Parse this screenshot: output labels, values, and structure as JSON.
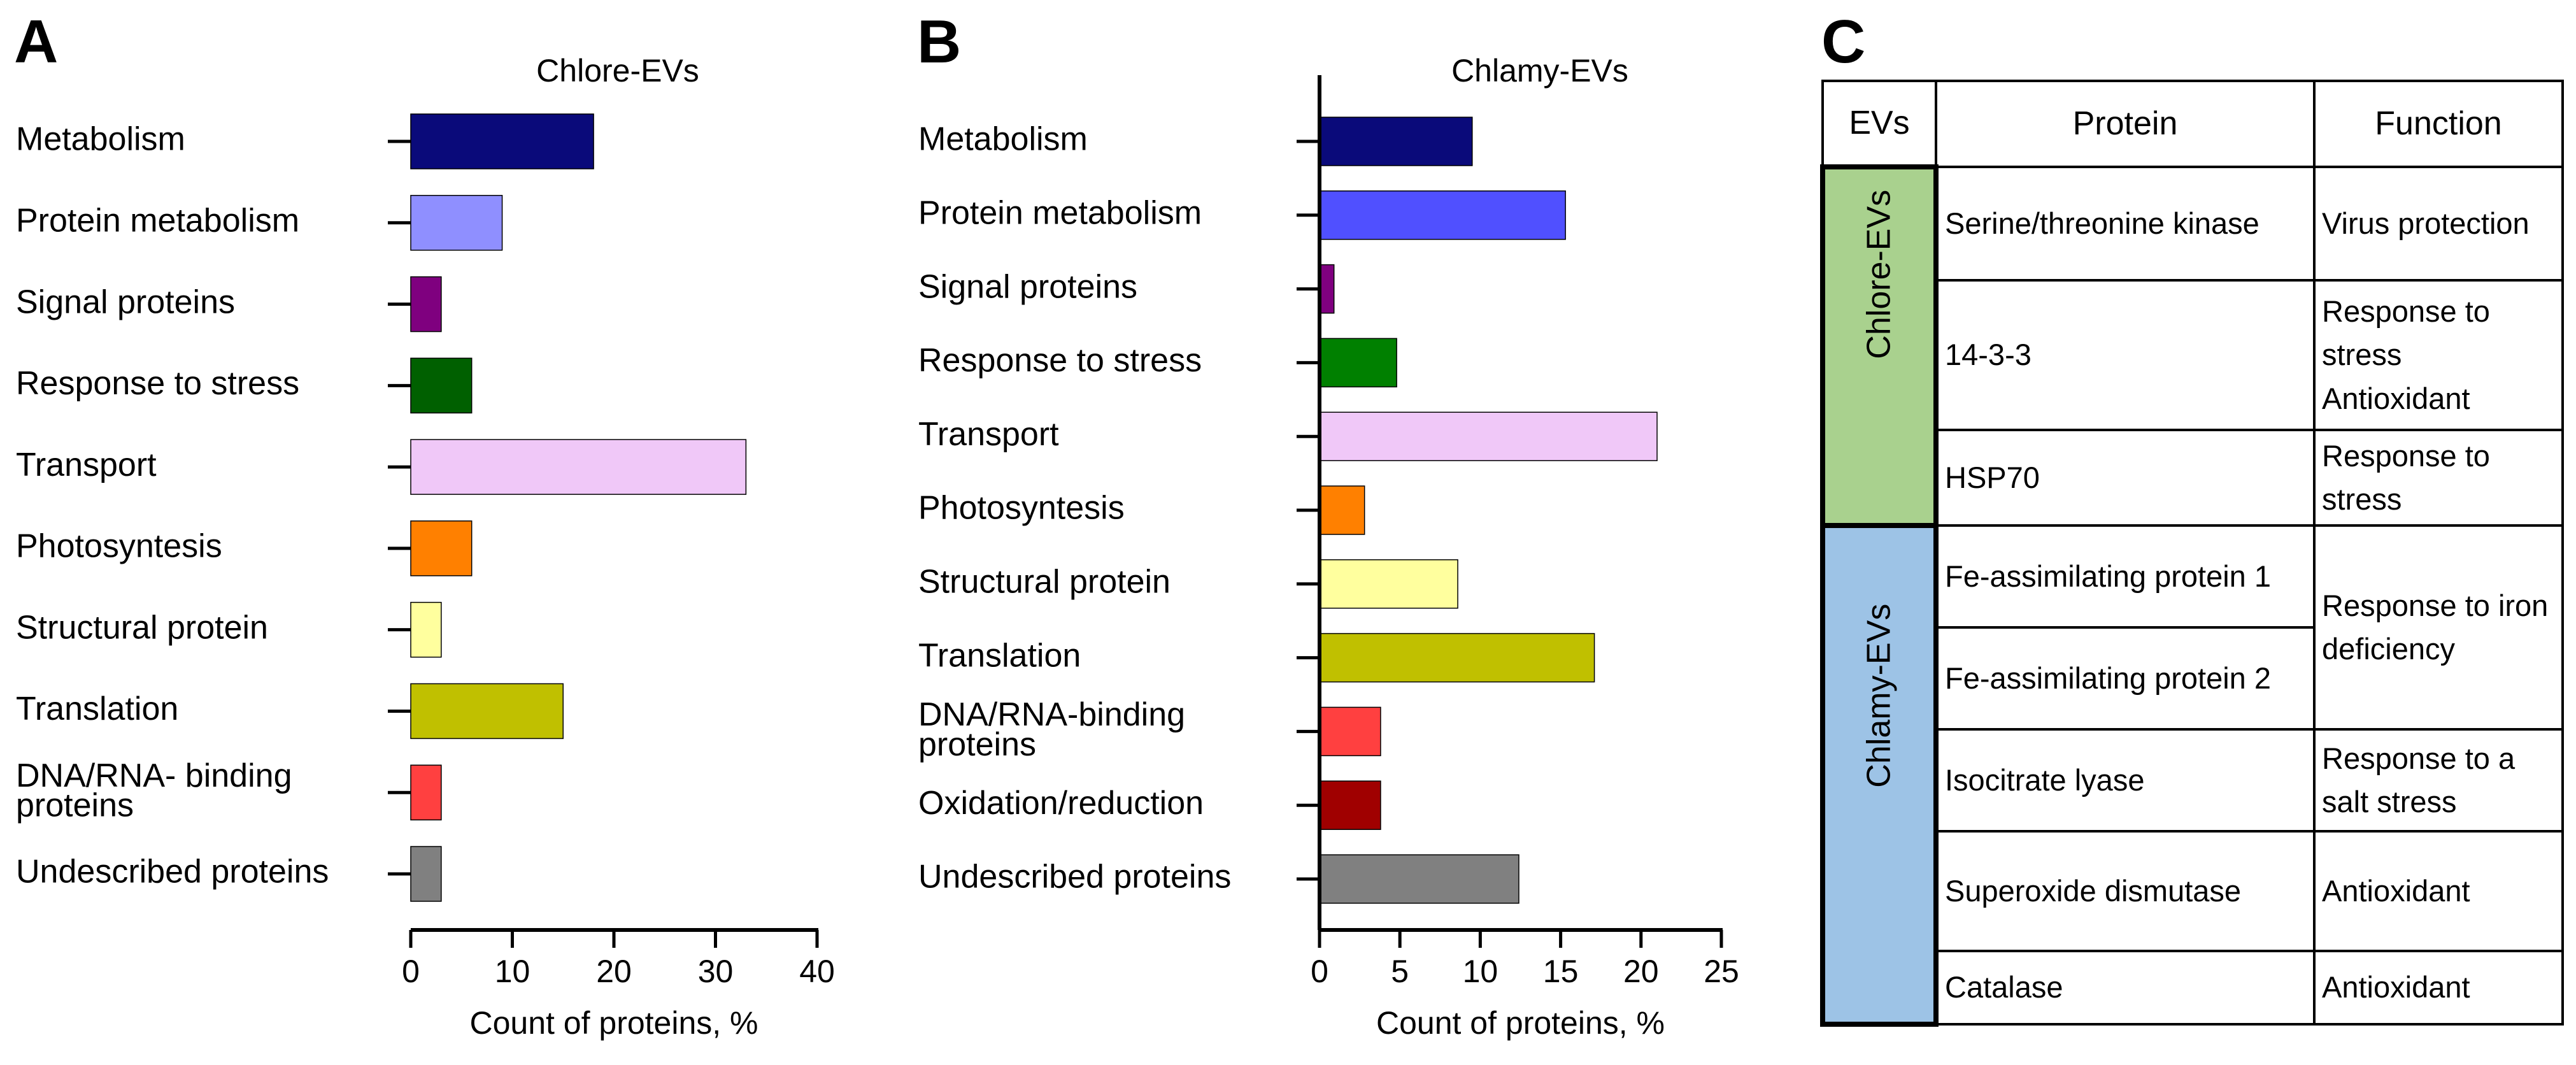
{
  "panels": {
    "a": "A",
    "b": "B",
    "c": "C"
  },
  "colors": {
    "Metabolism": "#0a0a7a",
    "Protein metabolism A": "#8f8fff",
    "Protein metabolism B": "#5050ff",
    "Signal proteins": "#7f007f",
    "Response to stress A": "#006000",
    "Response to stress B": "#008000",
    "Transport": "#f0c8f8",
    "Photosyntesis": "#ff8000",
    "Structural protein": "#ffff9e",
    "Translation": "#c0c000",
    "DNA/RNA": "#ff4040",
    "Oxidation/reduction": "#a00000",
    "Undescribed proteins": "#808080",
    "chlore_group": "#a9d18e",
    "chlamy_group": "#9dc3e6"
  },
  "chart_data": [
    {
      "type": "bar",
      "orientation": "horizontal",
      "title": "Chlore-EVs",
      "xlabel": "Count of proteins, %",
      "ylabel": "",
      "xlim": [
        0,
        40
      ],
      "xticks": [
        "0",
        "10",
        "20",
        "30",
        "40"
      ],
      "categories": [
        "Metabolism",
        "Protein metabolism",
        "Signal proteins",
        "Response to stress",
        "Transport",
        "Photosyntesis",
        "Structural protein",
        "Translation",
        "DNA/RNA- binding proteins",
        "Undescribed proteins"
      ],
      "values": [
        18,
        9,
        3,
        6,
        33,
        6,
        3,
        15,
        3,
        3
      ],
      "colors": [
        "#0a0a7a",
        "#8f8fff",
        "#7f007f",
        "#006000",
        "#f0c8f8",
        "#ff8000",
        "#ffff9e",
        "#c0c000",
        "#ff4040",
        "#808080"
      ],
      "grid": false
    },
    {
      "type": "bar",
      "orientation": "horizontal",
      "title": "Chlamy-EVs",
      "xlabel": "Count of proteins, %",
      "ylabel": "",
      "xlim": [
        0,
        25
      ],
      "xticks": [
        "0",
        "5",
        "10",
        "15",
        "20",
        "25"
      ],
      "categories": [
        "Metabolism",
        "Protein metabolism",
        "Signal proteins",
        "Response to stress",
        "Transport",
        "Photosyntesis",
        "Structural protein",
        "Translation",
        "DNA/RNA-binding proteins",
        "Oxidation/reduction",
        "Undescribed proteins"
      ],
      "values": [
        9.5,
        15.3,
        0.9,
        4.8,
        21,
        2.8,
        8.6,
        17.1,
        3.8,
        3.8,
        12.4
      ],
      "colors": [
        "#0a0a7a",
        "#5050ff",
        "#7f007f",
        "#008000",
        "#f0c8f8",
        "#ff8000",
        "#ffff9e",
        "#c0c000",
        "#ff4040",
        "#a00000",
        "#808080"
      ],
      "grid": false
    }
  ],
  "table": {
    "headers": [
      "EVs",
      "Protein",
      "Function"
    ],
    "chlore_label": "Chlore-EVs",
    "chlamy_label": "Chlamy-EVs",
    "rows": [
      {
        "protein": "Serine/threonine kinase",
        "function": "Virus protection"
      },
      {
        "protein": "14-3-3",
        "function": "Response to stress Antioxidant"
      },
      {
        "protein": "HSP70",
        "function": "Response to stress"
      },
      {
        "protein": "Fe-assimilating protein 1",
        "function": "Response  to iron deficiency"
      },
      {
        "protein": "Fe-assimilating protein 2",
        "function": ""
      },
      {
        "protein": "Isocitrate lyase",
        "function": "Response to a salt stress"
      },
      {
        "protein": "Superoxide dismutase",
        "function": "Antioxidant"
      },
      {
        "protein": "Catalase",
        "function": "Antioxidant"
      }
    ]
  }
}
